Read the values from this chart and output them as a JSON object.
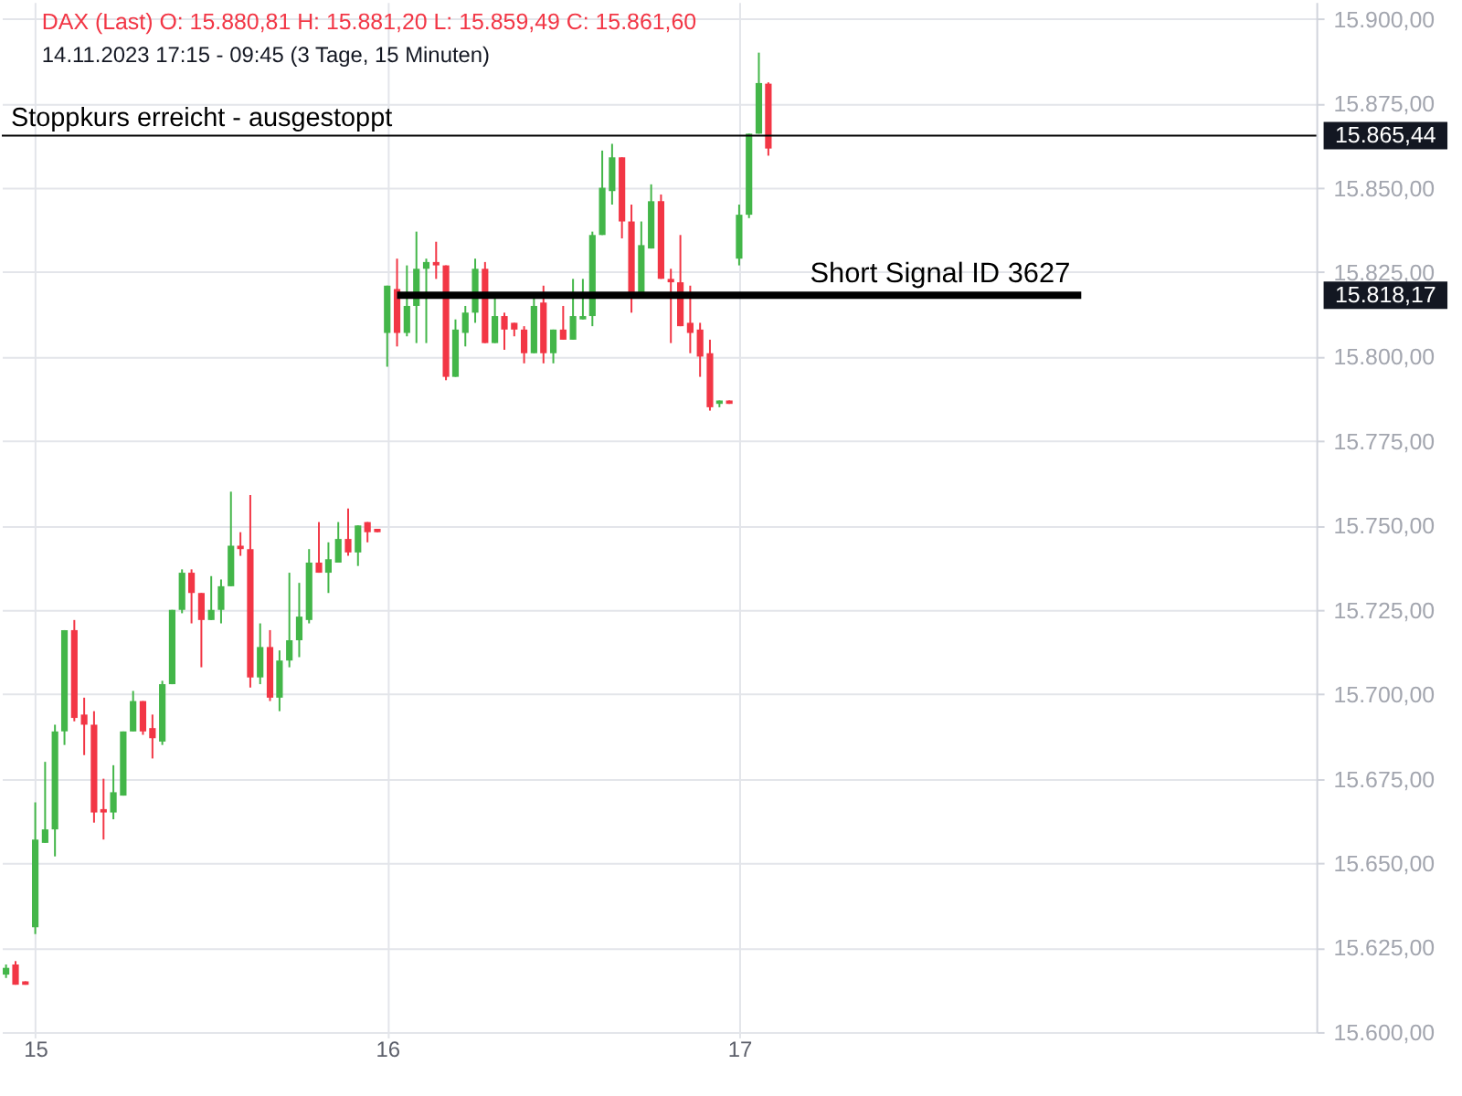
{
  "chart_data": {
    "type": "candlestick",
    "title": "DAX (Last)  O: 15.880,81  H: 15.881,20  L: 15.859,49  C: 15.861,60",
    "subtitle": "14.11.2023 17:15 - 09:45  (3 Tage, 15 Minuten)",
    "x": [
      14.917,
      14.944,
      14.972,
      15,
      15.028,
      15.056,
      15.083,
      15.111,
      15.139,
      15.167,
      15.194,
      15.222,
      15.25,
      15.278,
      15.306,
      15.333,
      15.361,
      15.389,
      15.417,
      15.444,
      15.472,
      15.5,
      15.528,
      15.556,
      15.583,
      15.611,
      15.639,
      15.667,
      15.694,
      15.722,
      15.75,
      15.778,
      15.806,
      15.833,
      15.861,
      15.889,
      15.917,
      15.944,
      15.972,
      16,
      16.028,
      16.056,
      16.083,
      16.111,
      16.139,
      16.167,
      16.194,
      16.222,
      16.25,
      16.278,
      16.306,
      16.333,
      16.361,
      16.389,
      16.417,
      16.444,
      16.472,
      16.5,
      16.528,
      16.556,
      16.583,
      16.611,
      16.639,
      16.667,
      16.694,
      16.722,
      16.75,
      16.778,
      16.806,
      16.833,
      16.861,
      16.889,
      16.917,
      16.944,
      16.972,
      17,
      17.028,
      17.056,
      17.083
    ],
    "ohlc": [
      [
        15617,
        15620,
        15616,
        15619
      ],
      [
        15620,
        15621,
        15614,
        15614
      ],
      [
        15615,
        15615,
        15614,
        15614
      ],
      [
        15631,
        15668,
        15629,
        15657
      ],
      [
        15656,
        15680,
        15656,
        15660
      ],
      [
        15660,
        15691,
        15652,
        15689
      ],
      [
        15689,
        15719,
        15685,
        15719
      ],
      [
        15719,
        15722,
        15692,
        15693
      ],
      [
        15694,
        15699,
        15682,
        15691
      ],
      [
        15691,
        15695,
        15662,
        15665
      ],
      [
        15666,
        15675,
        15657,
        15665
      ],
      [
        15665,
        15679,
        15663,
        15671
      ],
      [
        15670,
        15689,
        15670,
        15689
      ],
      [
        15689,
        15701,
        15689,
        15698
      ],
      [
        15698,
        15698,
        15688,
        15689
      ],
      [
        15690,
        15694,
        15681,
        15687
      ],
      [
        15686,
        15704,
        15685,
        15703
      ],
      [
        15703,
        15725,
        15703,
        15725
      ],
      [
        15725,
        15737,
        15724,
        15736
      ],
      [
        15736,
        15737,
        15721,
        15730
      ],
      [
        15730,
        15730,
        15708,
        15722
      ],
      [
        15722,
        15735,
        15722,
        15725
      ],
      [
        15725,
        15734,
        15721,
        15732
      ],
      [
        15732,
        15760,
        15732,
        15744
      ],
      [
        15744,
        15748,
        15741,
        15743
      ],
      [
        15743,
        15759,
        15702,
        15705
      ],
      [
        15705,
        15721,
        15703,
        15714
      ],
      [
        15714,
        15719,
        15698,
        15699
      ],
      [
        15699,
        15713,
        15695,
        15710
      ],
      [
        15710,
        15736,
        15708,
        15716
      ],
      [
        15716,
        15733,
        15711,
        15723
      ],
      [
        15722,
        15743,
        15721,
        15739
      ],
      [
        15739,
        15751,
        15736,
        15736
      ],
      [
        15736,
        15745,
        15730,
        15740
      ],
      [
        15739,
        15751,
        15739,
        15746
      ],
      [
        15746,
        15755,
        15741,
        15742
      ],
      [
        15742,
        15750,
        15738,
        15750
      ],
      [
        15751,
        15751,
        15745,
        15748
      ],
      [
        15749,
        15749,
        15748,
        15748
      ],
      [
        15807,
        15821,
        15797,
        15821
      ],
      [
        15820,
        15829,
        15803,
        15807
      ],
      [
        15807,
        15827,
        15806,
        15815
      ],
      [
        15815,
        15837,
        15804,
        15826
      ],
      [
        15826,
        15829,
        15804,
        15828
      ],
      [
        15828,
        15834,
        15823,
        15827
      ],
      [
        15827,
        15827,
        15793,
        15794
      ],
      [
        15794,
        15811,
        15794,
        15808
      ],
      [
        15807,
        15815,
        15803,
        15813
      ],
      [
        15813,
        15829,
        15810,
        15826
      ],
      [
        15826,
        15828,
        15804,
        15804
      ],
      [
        15804,
        15818,
        15804,
        15812
      ],
      [
        15812,
        15813,
        15802,
        15808
      ],
      [
        15810,
        15810,
        15806,
        15808
      ],
      [
        15808,
        15809,
        15798,
        15801
      ],
      [
        15801,
        15818,
        15801,
        15815
      ],
      [
        15816,
        15821,
        15798,
        15801
      ],
      [
        15801,
        15808,
        15798,
        15808
      ],
      [
        15808,
        15815,
        15805,
        15805
      ],
      [
        15805,
        15823,
        15805,
        15812
      ],
      [
        15811,
        15823,
        15811,
        15812
      ],
      [
        15812,
        15837,
        15809,
        15836
      ],
      [
        15836,
        15861,
        15836,
        15850
      ],
      [
        15849,
        15863,
        15845,
        15859
      ],
      [
        15859,
        15859,
        15835,
        15840
      ],
      [
        15840,
        15845,
        15813,
        15819
      ],
      [
        15819,
        15840,
        15819,
        15833
      ],
      [
        15832,
        15851,
        15832,
        15846
      ],
      [
        15846,
        15848,
        15823,
        15823
      ],
      [
        15823,
        15826,
        15804,
        15822
      ],
      [
        15822,
        15836,
        15809,
        15809
      ],
      [
        15810,
        15821,
        15801,
        15807
      ],
      [
        15808,
        15810,
        15794,
        15800
      ],
      [
        15801,
        15805,
        15784,
        15785
      ],
      [
        15786,
        15787,
        15785,
        15787
      ],
      [
        15787,
        15787,
        15786,
        15786
      ],
      [
        15829,
        15845,
        15827,
        15842
      ],
      [
        15842,
        15866,
        15841,
        15866
      ],
      [
        15866,
        15890,
        15866,
        15881
      ],
      [
        15880.81,
        15881.2,
        15859.49,
        15861.6
      ]
    ],
    "colors": [
      "#43b649",
      "#f23645",
      "#f23645",
      "#43b649",
      "#43b649",
      "#43b649",
      "#43b649",
      "#f23645",
      "#f23645",
      "#f23645",
      "#f23645",
      "#43b649",
      "#43b649",
      "#43b649",
      "#f23645",
      "#f23645",
      "#43b649",
      "#43b649",
      "#43b649",
      "#f23645",
      "#f23645",
      "#43b649",
      "#43b649",
      "#43b649",
      "#f23645",
      "#f23645",
      "#43b649",
      "#f23645",
      "#43b649",
      "#43b649",
      "#43b649",
      "#43b649",
      "#f23645",
      "#43b649",
      "#43b649",
      "#f23645",
      "#43b649",
      "#f23645",
      "#f23645",
      "#43b649",
      "#f23645",
      "#43b649",
      "#43b649",
      "#43b649",
      "#f23645",
      "#f23645",
      "#43b649",
      "#43b649",
      "#43b649",
      "#f23645",
      "#43b649",
      "#f23645",
      "#f23645",
      "#f23645",
      "#43b649",
      "#f23645",
      "#43b649",
      "#f23645",
      "#43b649",
      "#43b649",
      "#43b649",
      "#43b649",
      "#43b649",
      "#f23645",
      "#f23645",
      "#43b649",
      "#43b649",
      "#f23645",
      "#f23645",
      "#f23645",
      "#f23645",
      "#f23645",
      "#f23645",
      "#43b649",
      "#f23645",
      "#43b649",
      "#43b649",
      "#43b649",
      "#f23645"
    ],
    "series": [
      {
        "type": "line",
        "name": "Short Signal  ID 3627",
        "color": "#000000",
        "x": [
          16.028,
          17.972
        ],
        "values": [
          15818.17,
          15818.17
        ]
      }
    ],
    "ref_lines": [
      {
        "axis": "y",
        "value": 15865.44,
        "label": "Stoppkurs erreicht - ausgestoppt",
        "color": "#000000"
      }
    ],
    "annotations": [
      "15.865,44",
      "15.818,17"
    ],
    "xlim": [
      14.905,
      18.64
    ],
    "xticks": [
      15,
      16,
      17
    ],
    "ylim": [
      15600,
      15905
    ],
    "yticks": [
      {
        "value": 15600,
        "label": "15.600,00"
      },
      {
        "value": 15625,
        "label": "15.625,00"
      },
      {
        "value": 15650,
        "label": "15.650,00"
      },
      {
        "value": 15675,
        "label": "15.675,00"
      },
      {
        "value": 15700,
        "label": "15.700,00"
      },
      {
        "value": 15725,
        "label": "15.725,00"
      },
      {
        "value": 15750,
        "label": "15.750,00"
      },
      {
        "value": 15775,
        "label": "15.775,00"
      },
      {
        "value": 15800,
        "label": "15.800,00"
      },
      {
        "value": 15825,
        "label": "15.825,00"
      },
      {
        "value": 15850,
        "label": "15.850,00"
      },
      {
        "value": 15875,
        "label": "15.875,00"
      },
      {
        "value": 15900,
        "label": "15.900,00"
      }
    ],
    "grid": true
  }
}
